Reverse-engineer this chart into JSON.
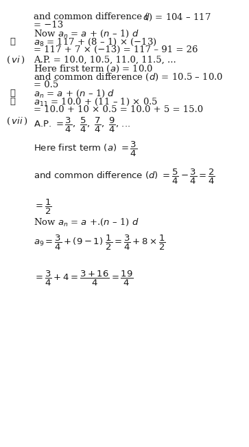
{
  "bg_color": "#ffffff",
  "text_color": "#1a1a1a",
  "figsize": [
    3.63,
    6.5
  ],
  "dpi": 100
}
